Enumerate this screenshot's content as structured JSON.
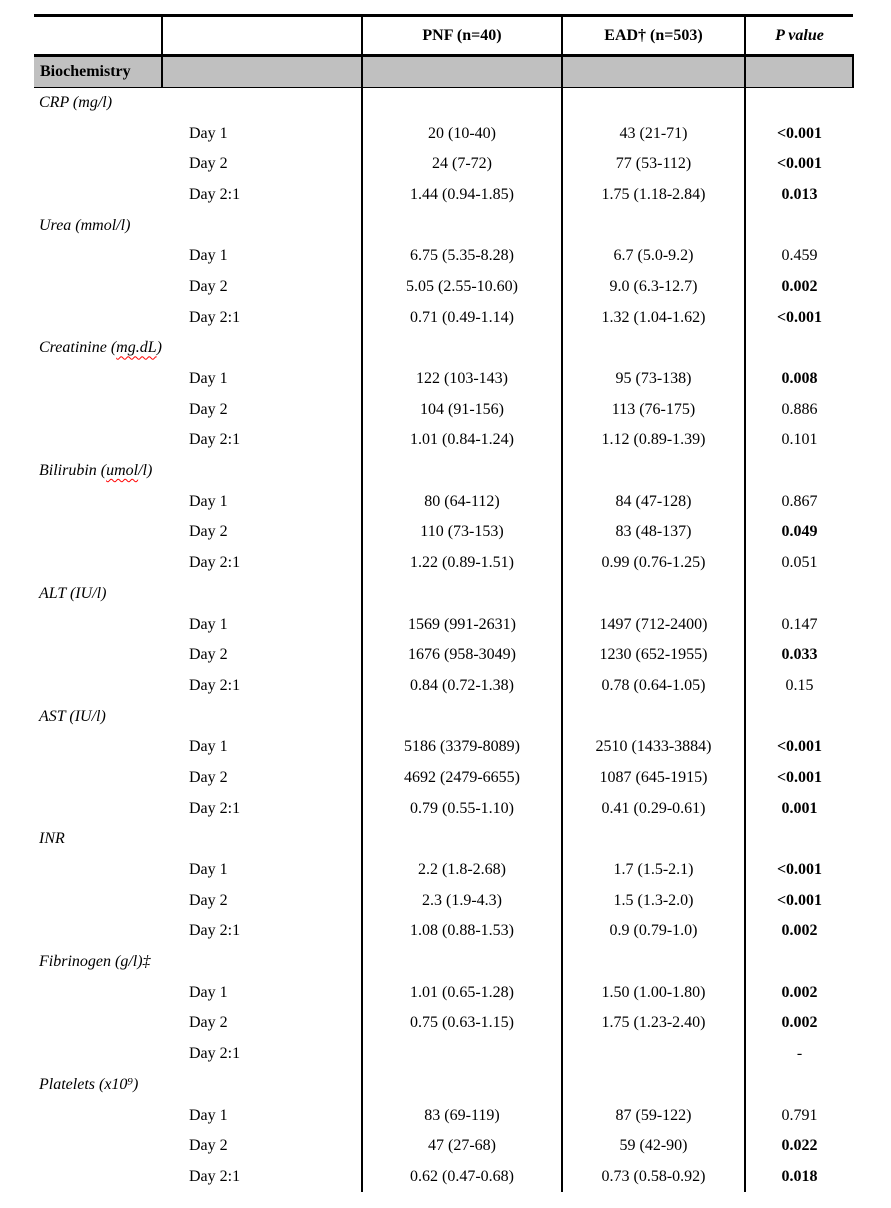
{
  "document": {
    "kind": "clinical-outcomes-table",
    "header": {
      "pnf": "PNF (n=40)",
      "ead": "EAD† (n=503)",
      "p_value": "P value"
    },
    "group_header": "Biochemistry",
    "sections": [
      {
        "label_parts": [
          {
            "text": "CRP (mg/l)",
            "misspelled": false
          }
        ],
        "rows": [
          {
            "label": "Day 1",
            "pnf": "20 (10-40)",
            "ead": "43 (21-71)",
            "p": "<0.001",
            "p_bold": true
          },
          {
            "label": "Day 2",
            "pnf": "24 (7-72)",
            "ead": "77 (53-112)",
            "p": "<0.001",
            "p_bold": true
          },
          {
            "label": "Day 2:1",
            "pnf": "1.44 (0.94-1.85)",
            "ead": "1.75 (1.18-2.84)",
            "p": "0.013",
            "p_bold": true
          }
        ]
      },
      {
        "label_parts": [
          {
            "text": "Urea (mmol/l)",
            "misspelled": false
          }
        ],
        "rows": [
          {
            "label": "Day 1",
            "pnf": "6.75 (5.35-8.28)",
            "ead": "6.7 (5.0-9.2)",
            "p": "0.459",
            "p_bold": false
          },
          {
            "label": "Day 2",
            "pnf": "5.05 (2.55-10.60)",
            "ead": "9.0 (6.3-12.7)",
            "p": "0.002",
            "p_bold": true
          },
          {
            "label": "Day 2:1",
            "pnf": "0.71 (0.49-1.14)",
            "ead": "1.32 (1.04-1.62)",
            "p": "<0.001",
            "p_bold": true
          }
        ]
      },
      {
        "label_parts": [
          {
            "text": "Creatinine (",
            "misspelled": false
          },
          {
            "text": "mg.dL",
            "misspelled": true
          },
          {
            "text": ")",
            "misspelled": false
          }
        ],
        "rows": [
          {
            "label": "Day 1",
            "pnf": "122 (103-143)",
            "ead": "95 (73-138)",
            "p": "0.008",
            "p_bold": true
          },
          {
            "label": "Day 2",
            "pnf": "104 (91-156)",
            "ead": "113 (76-175)",
            "p": "0.886",
            "p_bold": false
          },
          {
            "label": "Day 2:1",
            "pnf": "1.01 (0.84-1.24)",
            "ead": "1.12 (0.89-1.39)",
            "p": "0.101",
            "p_bold": false
          }
        ]
      },
      {
        "label_parts": [
          {
            "text": "Bilirubin (",
            "misspelled": false
          },
          {
            "text": "umol",
            "misspelled": true
          },
          {
            "text": "/l)",
            "misspelled": false
          }
        ],
        "rows": [
          {
            "label": "Day 1",
            "pnf": "80 (64-112)",
            "ead": "84 (47-128)",
            "p": "0.867",
            "p_bold": false
          },
          {
            "label": "Day 2",
            "pnf": "110 (73-153)",
            "ead": "83 (48-137)",
            "p": "0.049",
            "p_bold": true
          },
          {
            "label": "Day 2:1",
            "pnf": "1.22 (0.89-1.51)",
            "ead": "0.99 (0.76-1.25)",
            "p": "0.051",
            "p_bold": false
          }
        ]
      },
      {
        "label_parts": [
          {
            "text": "ALT (IU/l)",
            "misspelled": false
          }
        ],
        "rows": [
          {
            "label": "Day 1",
            "pnf": "1569 (991-2631)",
            "ead": "1497 (712-2400)",
            "p": "0.147",
            "p_bold": false
          },
          {
            "label": "Day 2",
            "pnf": "1676 (958-3049)",
            "ead": "1230 (652-1955)",
            "p": "0.033",
            "p_bold": true
          },
          {
            "label": "Day 2:1",
            "pnf": "0.84 (0.72-1.38)",
            "ead": "0.78 (0.64-1.05)",
            "p": "0.15",
            "p_bold": false
          }
        ]
      },
      {
        "label_parts": [
          {
            "text": "AST (IU/l)",
            "misspelled": false
          }
        ],
        "rows": [
          {
            "label": "Day 1",
            "pnf": "5186 (3379-8089)",
            "ead": "2510 (1433-3884)",
            "p": "<0.001",
            "p_bold": true
          },
          {
            "label": "Day 2",
            "pnf": "4692 (2479-6655)",
            "ead": "1087 (645-1915)",
            "p": "<0.001",
            "p_bold": true
          },
          {
            "label": "Day 2:1",
            "pnf": "0.79 (0.55-1.10)",
            "ead": "0.41 (0.29-0.61)",
            "p": "0.001",
            "p_bold": true
          }
        ]
      },
      {
        "label_parts": [
          {
            "text": "INR",
            "misspelled": false
          }
        ],
        "rows": [
          {
            "label": "Day 1",
            "pnf": "2.2 (1.8-2.68)",
            "ead": "1.7 (1.5-2.1)",
            "p": "<0.001",
            "p_bold": true
          },
          {
            "label": "Day 2",
            "pnf": "2.3 (1.9-4.3)",
            "ead": "1.5 (1.3-2.0)",
            "p": "<0.001",
            "p_bold": true
          },
          {
            "label": "Day 2:1",
            "pnf": "1.08 (0.88-1.53)",
            "ead": "0.9 (0.79-1.0)",
            "p": "0.002",
            "p_bold": true
          }
        ]
      },
      {
        "label_parts": [
          {
            "text": "Fibrinogen (g/l)‡",
            "misspelled": false
          }
        ],
        "rows": [
          {
            "label": "Day 1",
            "pnf": "1.01 (0.65-1.28)",
            "ead": "1.50 (1.00-1.80)",
            "p": "0.002",
            "p_bold": true
          },
          {
            "label": "Day 2",
            "pnf": "0.75 (0.63-1.15)",
            "ead": "1.75 (1.23-2.40)",
            "p": "0.002",
            "p_bold": true
          },
          {
            "label": "Day 2:1",
            "pnf": "",
            "ead": "",
            "p": "-",
            "p_bold": false
          }
        ]
      },
      {
        "label_parts": [
          {
            "text": "Platelets (x10⁹)",
            "misspelled": false
          }
        ],
        "rows": [
          {
            "label": "Day 1",
            "pnf": "83 (69-119)",
            "ead": "87 (59-122)",
            "p": "0.791",
            "p_bold": false
          },
          {
            "label": "Day 2",
            "pnf": "47 (27-68)",
            "ead": "59 (42-90)",
            "p": "0.022",
            "p_bold": true
          },
          {
            "label": "Day 2:1",
            "pnf": "0.62 (0.47-0.68)",
            "ead": "0.73 (0.58-0.92)",
            "p": "0.018",
            "p_bold": true
          }
        ]
      }
    ],
    "colors": {
      "group_header_fill": "#c0c0c0",
      "border": "#000000",
      "spellcheck_underline": "#ff0000"
    }
  }
}
